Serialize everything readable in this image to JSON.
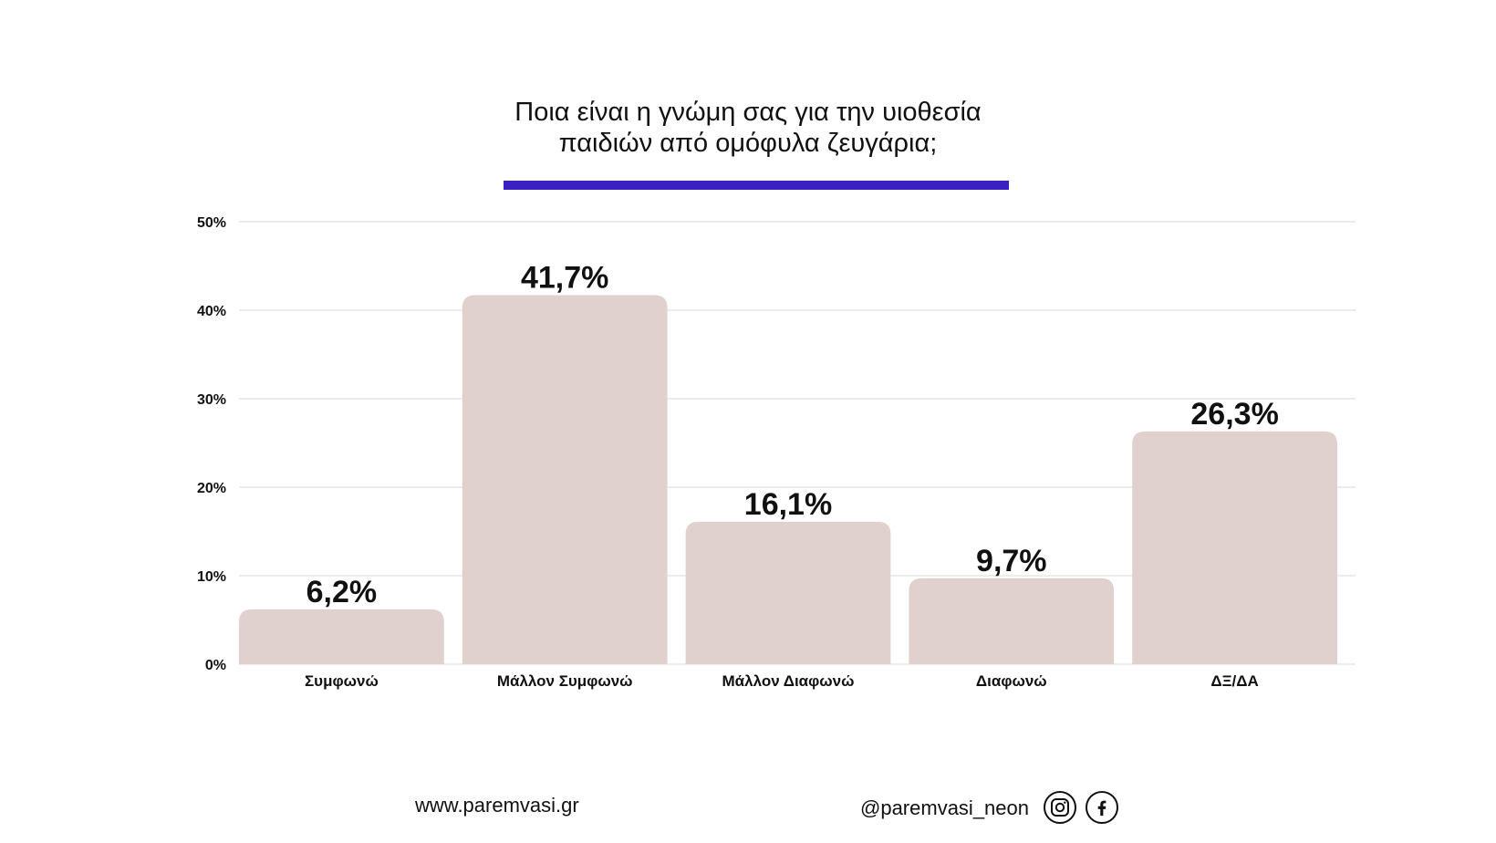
{
  "title_lines": [
    "Ποια είναι η γνώμη σας για την υιοθεσία",
    "παιδιών από ομόφυλα ζευγάρια;"
  ],
  "colors": {
    "accent": "#3a1fc1",
    "bar": "#e0d1cf",
    "grid": "#e6e6e6",
    "text": "#111111"
  },
  "chart_data": {
    "type": "bar",
    "categories": [
      "Συμφωνώ",
      "Μάλλον Συμφωνώ",
      "Μάλλον Διαφωνώ",
      "Διαφωνώ",
      "ΔΞ/ΔΑ"
    ],
    "values": [
      6.2,
      41.7,
      16.1,
      9.7,
      26.3
    ],
    "value_labels": [
      "6,2%",
      "41,7%",
      "16,1%",
      "9,7%",
      "26,3%"
    ],
    "ylim": [
      0,
      50
    ],
    "y_ticks": [
      0,
      10,
      20,
      30,
      40,
      50
    ],
    "y_tick_labels": [
      "0%",
      "10%",
      "20%",
      "30%",
      "40%",
      "50%"
    ],
    "grid": true
  },
  "footer": {
    "website": "www.paremvasi.gr",
    "handle": "@paremvasi_neon",
    "icons": [
      "instagram-icon",
      "facebook-icon"
    ]
  }
}
